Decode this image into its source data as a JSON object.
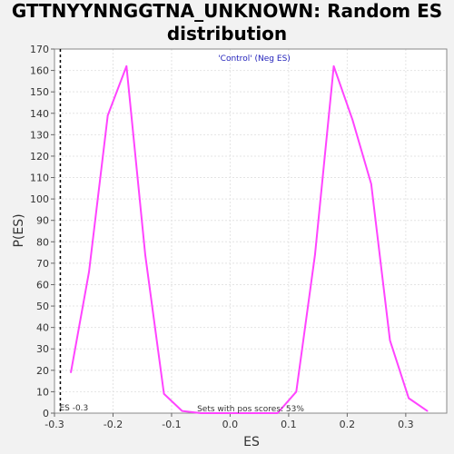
{
  "chart_data": {
    "type": "line",
    "title_line1": "GTTNYYNNGGTNA_UNKNOWN: Random ES",
    "title_line2": "distribution",
    "xlabel": "ES",
    "ylabel": "P(ES)",
    "xlim": [
      -0.3,
      0.37
    ],
    "ylim": [
      0,
      170
    ],
    "xticks": [
      "-0.3",
      "-0.2",
      "-0.1",
      "0.0",
      "0.1",
      "0.2",
      "0.3"
    ],
    "xtick_values": [
      -0.3,
      -0.2,
      -0.1,
      0.0,
      0.1,
      0.2,
      0.3
    ],
    "yticks": [
      0,
      10,
      20,
      30,
      40,
      50,
      60,
      70,
      80,
      90,
      100,
      110,
      120,
      130,
      140,
      150,
      160,
      170
    ],
    "grid": true,
    "series": [
      {
        "color": "#ff44ff",
        "points": [
          [
            -0.272,
            19
          ],
          [
            -0.241,
            66
          ],
          [
            -0.209,
            139
          ],
          [
            -0.177,
            162
          ],
          [
            -0.145,
            74
          ],
          [
            -0.113,
            9
          ],
          [
            -0.082,
            1
          ],
          [
            -0.05,
            0
          ],
          [
            -0.018,
            0
          ],
          [
            0.013,
            0
          ],
          [
            0.045,
            0
          ],
          [
            0.081,
            0
          ],
          [
            0.113,
            10
          ],
          [
            0.145,
            74
          ],
          [
            0.177,
            162
          ],
          [
            0.209,
            137
          ],
          [
            0.241,
            107
          ],
          [
            0.273,
            34
          ],
          [
            0.305,
            7
          ],
          [
            0.337,
            1
          ]
        ]
      }
    ],
    "vline": {
      "x": -0.29,
      "label": "ES -0.3"
    },
    "legend_text": "'Control' (Neg ES)",
    "legend_color": "#2222bb",
    "bottom_note": "Sets with pos scores: 53%"
  }
}
